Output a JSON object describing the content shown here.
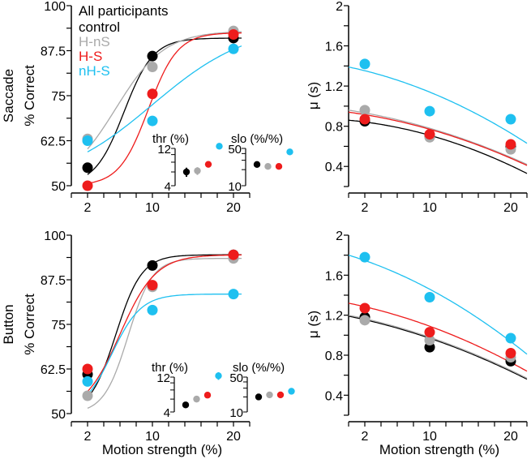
{
  "colors": {
    "control": "#000000",
    "H-nS": "#aaaaaa",
    "H-S": "#ee1c1c",
    "nH-S": "#1ec0f0"
  },
  "legend": {
    "title": "All participants",
    "items": [
      "control",
      "H-nS",
      "H-S",
      "nH-S"
    ]
  },
  "row_labels": [
    "Saccade",
    "Button"
  ],
  "chart_data": [
    {
      "id": "saccade-pc",
      "type": "scatter",
      "title": "",
      "xlabel": "",
      "ylabel": "% Correct",
      "row_label": "Saccade",
      "xlim": [
        0,
        22
      ],
      "ylim": [
        50,
        100
      ],
      "xticks": [
        "2",
        "10",
        "20"
      ],
      "yticks": [
        "50",
        "62.5",
        "75",
        "87.5",
        "100"
      ],
      "x": [
        2,
        10,
        20
      ],
      "series": [
        {
          "name": "control",
          "values": [
            55,
            86,
            91
          ],
          "fit": {
            "kind": "logistic",
            "lo": 50,
            "hi": 91,
            "mid": 6.5,
            "scale": 1.8
          }
        },
        {
          "name": "H-nS",
          "values": [
            63,
            83,
            93
          ],
          "fit": {
            "kind": "logistic",
            "lo": 50,
            "hi": 93,
            "mid": 5.5,
            "scale": 3
          }
        },
        {
          "name": "H-S",
          "values": [
            50,
            75.5,
            92
          ],
          "fit": {
            "kind": "logistic",
            "lo": 50,
            "hi": 92.5,
            "mid": 9.5,
            "scale": 1.8
          }
        },
        {
          "name": "nH-S",
          "values": [
            62.5,
            68,
            88
          ],
          "fit": {
            "kind": "logistic",
            "lo": 50,
            "hi": 95,
            "mid": 10,
            "scale": 6
          }
        }
      ],
      "inset": {
        "thr": {
          "label": "thr (%)",
          "ticks": [
            "4",
            "12"
          ],
          "ylim": [
            4,
            12
          ],
          "values": [
            6,
            6.2,
            7.5,
            12.8
          ],
          "err": [
            0.8,
            0.7,
            0.4,
            0.8
          ]
        },
        "slo": {
          "label": "slo (%/%)",
          "ticks": [
            "10",
            "50"
          ],
          "ylim": [
            10,
            50
          ],
          "values": [
            25,
            23,
            23,
            43
          ],
          "err": [
            1,
            1,
            1,
            1
          ]
        }
      }
    },
    {
      "id": "saccade-mu",
      "type": "scatter",
      "xlabel": "",
      "ylabel": "μ (s)",
      "xlim": [
        0,
        22
      ],
      "ylim": [
        0.2,
        2
      ],
      "xticks": [
        "2",
        "10",
        "20"
      ],
      "yticks": [
        "0.4",
        "0.8",
        "1.2",
        "1.6",
        "2"
      ],
      "x": [
        2,
        10,
        20
      ],
      "series": [
        {
          "name": "control",
          "values": [
            0.85,
            0.7,
            0.6
          ],
          "fit": {
            "kind": "quadratic",
            "at_0": 0.86,
            "at_10": 0.71,
            "at_22": 0.33
          }
        },
        {
          "name": "H-nS",
          "values": [
            0.96,
            0.69,
            0.57
          ],
          "fit": {
            "kind": "quadratic",
            "at_0": 0.96,
            "at_10": 0.78,
            "at_22": 0.42
          }
        },
        {
          "name": "H-S",
          "values": [
            0.87,
            0.72,
            0.62
          ],
          "fit": {
            "kind": "quadratic",
            "at_0": 0.94,
            "at_10": 0.77,
            "at_22": 0.41
          }
        },
        {
          "name": "nH-S",
          "values": [
            1.42,
            0.95,
            0.87
          ],
          "fit": {
            "kind": "quadratic",
            "at_0": 1.39,
            "at_10": 1.14,
            "at_22": 0.63
          }
        }
      ]
    },
    {
      "id": "button-pc",
      "type": "scatter",
      "xlabel": "Motion strength (%)",
      "ylabel": "% Correct",
      "row_label": "Button",
      "xlim": [
        0,
        22
      ],
      "ylim": [
        50,
        100
      ],
      "xticks": [
        "2",
        "10",
        "20"
      ],
      "yticks": [
        "50",
        "62.5",
        "75",
        "87.5",
        "100"
      ],
      "x": [
        2,
        10,
        20
      ],
      "series": [
        {
          "name": "control",
          "values": [
            61,
            91.5,
            94.5
          ],
          "fit": {
            "kind": "logistic",
            "lo": 50,
            "hi": 94.5,
            "mid": 5.5,
            "scale": 1.6
          }
        },
        {
          "name": "H-nS",
          "values": [
            55,
            85.5,
            93.5
          ],
          "fit": {
            "kind": "logistic",
            "lo": 50,
            "hi": 93.5,
            "mid": 7,
            "scale": 1.5
          }
        },
        {
          "name": "H-S",
          "values": [
            62.5,
            86,
            94.5
          ],
          "fit": {
            "kind": "logistic",
            "lo": 50,
            "hi": 94.5,
            "mid": 6,
            "scale": 2.2
          }
        },
        {
          "name": "nH-S",
          "values": [
            59,
            79,
            83.5
          ],
          "fit": {
            "kind": "logistic",
            "lo": 50,
            "hi": 83.5,
            "mid": 5,
            "scale": 1.8
          }
        }
      ],
      "inset": {
        "thr": {
          "label": "thr (%)",
          "ticks": [
            "4",
            "12"
          ],
          "ylim": [
            4,
            12
          ],
          "values": [
            5,
            6,
            6.8,
            12.5
          ],
          "err": [
            0.4,
            0.3,
            0.6,
            1.5
          ]
        },
        "slo": {
          "label": "slo (%/%)",
          "ticks": [
            "10",
            "50"
          ],
          "ylim": [
            10,
            50
          ],
          "values": [
            20,
            22,
            22,
            26
          ],
          "err": [
            2,
            1,
            1,
            3
          ]
        }
      }
    },
    {
      "id": "button-mu",
      "type": "scatter",
      "xlabel": "Motion strength (%)",
      "ylabel": "μ (s)",
      "xlim": [
        0,
        22
      ],
      "ylim": [
        0.2,
        2
      ],
      "xticks": [
        "2",
        "10",
        "20"
      ],
      "yticks": [
        "0.4",
        "0.8",
        "1.2",
        "1.6",
        "2"
      ],
      "x": [
        2,
        10,
        20
      ],
      "series": [
        {
          "name": "control",
          "values": [
            1.18,
            0.88,
            0.74
          ],
          "fit": {
            "kind": "quadratic",
            "at_0": 1.19,
            "at_10": 0.97,
            "at_22": 0.56
          }
        },
        {
          "name": "H-nS",
          "values": [
            1.15,
            0.95,
            0.78
          ],
          "fit": {
            "kind": "quadratic",
            "at_0": 1.2,
            "at_10": 0.98,
            "at_22": 0.57
          }
        },
        {
          "name": "H-S",
          "values": [
            1.27,
            1.03,
            0.82
          ],
          "fit": {
            "kind": "quadratic",
            "at_0": 1.32,
            "at_10": 1.09,
            "at_22": 0.64
          }
        },
        {
          "name": "nH-S",
          "values": [
            1.78,
            1.38,
            0.97
          ],
          "fit": {
            "kind": "quadratic",
            "at_0": 1.8,
            "at_10": 1.46,
            "at_22": 0.81
          }
        }
      ]
    }
  ]
}
